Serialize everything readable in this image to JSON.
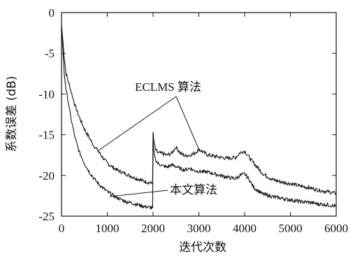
{
  "chart_data": {
    "type": "line",
    "title": "",
    "xlabel": "迭代次数",
    "ylabel": "系数误差 (dB)",
    "xlim": [
      0,
      6000
    ],
    "ylim": [
      -25,
      0
    ],
    "xticks": [
      0,
      1000,
      2000,
      3000,
      4000,
      5000,
      6000
    ],
    "yticks": [
      0,
      -5,
      -10,
      -15,
      -20,
      -25
    ],
    "grid": false,
    "legend": "none",
    "series": [
      {
        "name": "ECLMS 算法",
        "color": "#111111",
        "x": [
          0,
          30,
          60,
          100,
          150,
          200,
          300,
          400,
          500,
          600,
          700,
          800,
          900,
          1000,
          1200,
          1400,
          1600,
          1800,
          1990,
          2000,
          2010,
          2050,
          2100,
          2200,
          2300,
          2400,
          2500,
          2600,
          2700,
          2800,
          2900,
          3000,
          3200,
          3400,
          3600,
          3800,
          3900,
          4000,
          4100,
          4200,
          4400,
          4600,
          4800,
          5000,
          5200,
          5400,
          5600,
          5800,
          6000
        ],
        "y": [
          -1.5,
          -3.5,
          -5.5,
          -7.5,
          -8.5,
          -9.5,
          -11.5,
          -13,
          -14.3,
          -15.3,
          -16.3,
          -17,
          -17.8,
          -18.5,
          -19.3,
          -19.8,
          -20.3,
          -20.7,
          -21,
          -14.5,
          -15.5,
          -16.8,
          -17.2,
          -17.3,
          -17.5,
          -17.3,
          -16.5,
          -17.3,
          -17.6,
          -17.5,
          -17.3,
          -16.8,
          -17.5,
          -17.7,
          -17.9,
          -17.8,
          -17.2,
          -17.0,
          -17.8,
          -18.5,
          -19.8,
          -20.5,
          -20.8,
          -21.0,
          -21.3,
          -21.5,
          -21.8,
          -22.0,
          -22.2
        ]
      },
      {
        "name": "本文算法",
        "color": "#111111",
        "x": [
          0,
          30,
          60,
          100,
          150,
          200,
          300,
          400,
          500,
          600,
          700,
          800,
          900,
          1000,
          1200,
          1400,
          1600,
          1800,
          1990,
          2000,
          2010,
          2050,
          2100,
          2200,
          2300,
          2400,
          2500,
          2600,
          2700,
          2800,
          2900,
          3000,
          3200,
          3400,
          3600,
          3800,
          3900,
          4000,
          4100,
          4200,
          4400,
          4600,
          4800,
          5000,
          5200,
          5400,
          5600,
          5800,
          6000
        ],
        "y": [
          -1.5,
          -4.5,
          -7.5,
          -9.5,
          -11,
          -12.8,
          -15.5,
          -17.3,
          -18.5,
          -19.5,
          -20.3,
          -21,
          -21.5,
          -22,
          -22.7,
          -23.2,
          -23.5,
          -23.8,
          -24,
          -15.5,
          -16.8,
          -18,
          -18.5,
          -18.8,
          -19,
          -18.7,
          -18.9,
          -19.2,
          -19.3,
          -19.1,
          -19.4,
          -19.5,
          -19.6,
          -19.9,
          -20.2,
          -20.4,
          -20.0,
          -19.8,
          -20.5,
          -21.5,
          -22.3,
          -22.6,
          -22.8,
          -23.0,
          -23.2,
          -23.3,
          -23.5,
          -23.6,
          -23.8
        ]
      }
    ],
    "annotations": [
      {
        "text": "ECLMS 算法",
        "targets": [
          [
            790,
            -17.0
          ],
          [
            3000,
            -16.8
          ]
        ]
      },
      {
        "text": "本文算法",
        "targets": [
          [
            1200,
            -22.7
          ]
        ]
      }
    ]
  }
}
